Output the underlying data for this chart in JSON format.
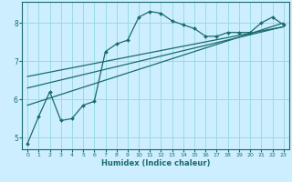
{
  "xlabel": "Humidex (Indice chaleur)",
  "bg_color": "#cceeff",
  "grid_color": "#99dddd",
  "line_color": "#1a6b6b",
  "xlim": [
    -0.5,
    23.5
  ],
  "ylim": [
    4.7,
    8.55
  ],
  "xticks": [
    0,
    1,
    2,
    3,
    4,
    5,
    6,
    7,
    8,
    9,
    10,
    11,
    12,
    13,
    14,
    15,
    16,
    17,
    18,
    19,
    20,
    21,
    22,
    23
  ],
  "yticks": [
    5,
    6,
    7,
    8
  ],
  "curve1_x": [
    0,
    1,
    2,
    3,
    4,
    5,
    6,
    7,
    8,
    9,
    10,
    11,
    12,
    13,
    14,
    15,
    16,
    17,
    18,
    19,
    20,
    21,
    22,
    23
  ],
  "curve1_y": [
    4.85,
    5.55,
    6.2,
    5.45,
    5.5,
    5.85,
    5.95,
    7.25,
    7.45,
    7.55,
    8.15,
    8.3,
    8.25,
    8.05,
    7.95,
    7.85,
    7.65,
    7.65,
    7.75,
    7.75,
    7.75,
    8.0,
    8.15,
    7.95
  ],
  "curve2_x": [
    0,
    23
  ],
  "curve2_y": [
    5.85,
    8.0
  ],
  "curve3_x": [
    0,
    23
  ],
  "curve3_y": [
    6.3,
    7.9
  ],
  "curve4_x": [
    0,
    23
  ],
  "curve4_y": [
    6.6,
    7.9
  ],
  "marker_style": "D",
  "marker_size": 2.0
}
